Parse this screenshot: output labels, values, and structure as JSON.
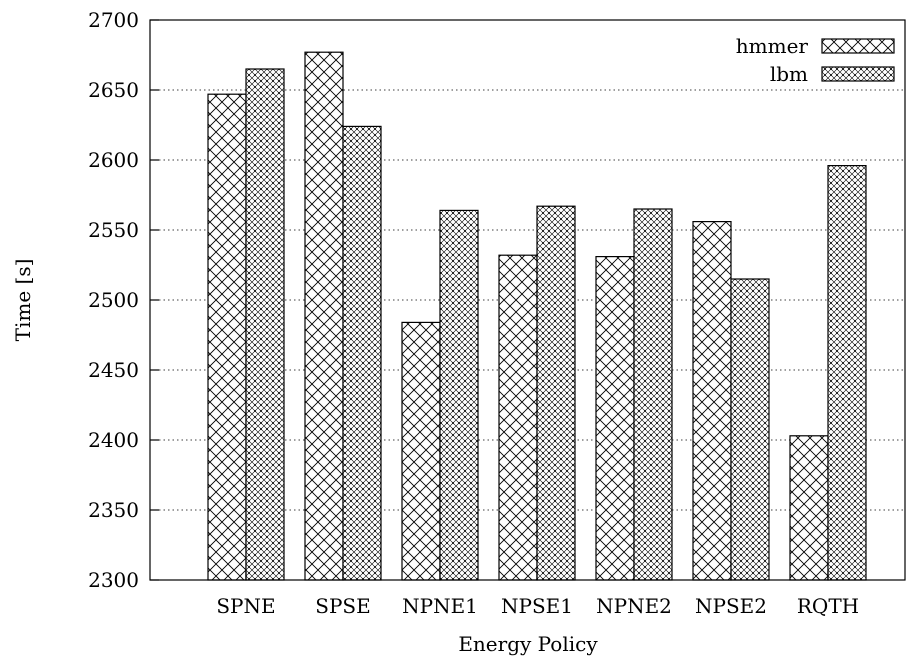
{
  "chart_data": {
    "type": "bar",
    "categories": [
      "SPNE",
      "SPSE",
      "NPNE1",
      "NPSE1",
      "NPNE2",
      "NPSE2",
      "RQTH"
    ],
    "series": [
      {
        "name": "hmmer",
        "values": [
          2647,
          2677,
          2484,
          2532,
          2531,
          2556,
          2403
        ],
        "pattern": "crosshatch"
      },
      {
        "name": "lbm",
        "values": [
          2665,
          2624,
          2564,
          2567,
          2565,
          2515,
          2596
        ],
        "pattern": "dense-dots"
      }
    ],
    "xlabel": "Energy Policy",
    "ylabel": "Time [s]",
    "ylim": [
      2300,
      2700
    ],
    "yticks": [
      2300,
      2350,
      2400,
      2450,
      2500,
      2550,
      2600,
      2650,
      2700
    ],
    "grid": "horizontal-dotted",
    "legend_position": "top-right",
    "colors": {
      "bar_stroke": "#000000",
      "background": "#ffffff"
    }
  }
}
